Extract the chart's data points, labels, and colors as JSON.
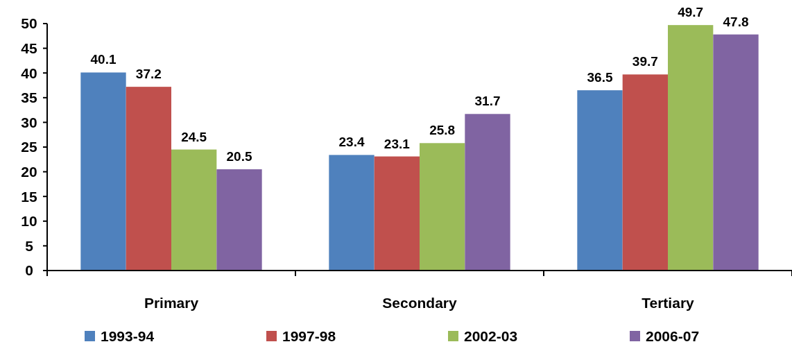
{
  "chart_data": {
    "type": "bar",
    "categories": [
      "Primary",
      "Secondary",
      "Tertiary"
    ],
    "series": [
      {
        "name": "1993-94",
        "color": "#4f81bd",
        "values": [
          40.1,
          23.4,
          36.5
        ]
      },
      {
        "name": "1997-98",
        "color": "#c0504d",
        "values": [
          37.2,
          23.1,
          39.7
        ]
      },
      {
        "name": "2002-03",
        "color": "#9bbb59",
        "values": [
          24.5,
          25.8,
          49.7
        ]
      },
      {
        "name": "2006-07",
        "color": "#8064a2",
        "values": [
          20.5,
          31.7,
          47.8
        ]
      }
    ],
    "ylim": [
      0,
      50
    ],
    "yticks": [
      0,
      5,
      10,
      15,
      20,
      25,
      30,
      35,
      40,
      45,
      50
    ],
    "data_labels": true,
    "legend": "bottom",
    "grid": false
  }
}
